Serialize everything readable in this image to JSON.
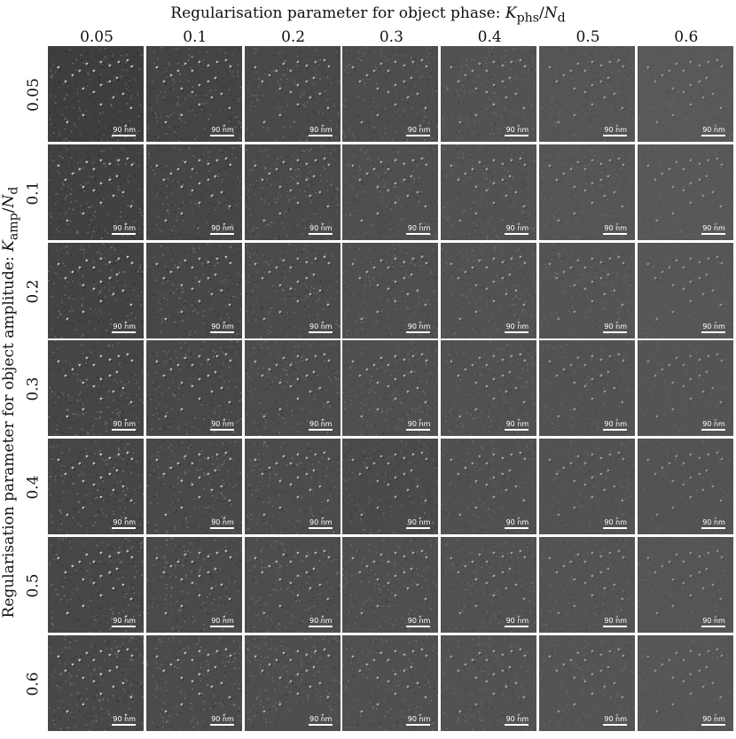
{
  "figure": {
    "top_title_prefix": "Regularisation parameter for object phase: ",
    "top_title_math": "K_phs/N_d",
    "left_title_prefix": "Regularisation parameter for object amplitude: ",
    "left_title_math": "K_amp/N_d",
    "column_values": [
      "0.05",
      "0.1",
      "0.2",
      "0.3",
      "0.4",
      "0.5",
      "0.6"
    ],
    "row_values": [
      "0.05",
      "0.1",
      "0.2",
      "0.3",
      "0.4",
      "0.5",
      "0.6"
    ],
    "scale_bar_label": "90 nm",
    "tile_background_grays": [
      [
        "#3e3e3e",
        "#444444",
        "#494949",
        "#4d4d4d",
        "#525252",
        "#555555",
        "#595959"
      ],
      [
        "#414141",
        "#464646",
        "#4a4a4a",
        "#4f4f4f",
        "#525252",
        "#555555",
        "#585858"
      ],
      [
        "#434343",
        "#474747",
        "#4b4b4b",
        "#4f4f4f",
        "#525252",
        "#545454",
        "#565656"
      ],
      [
        "#454545",
        "#484848",
        "#4c4c4c",
        "#4f4f4f",
        "#515151",
        "#525252",
        "#545454"
      ],
      [
        "#464646",
        "#494949",
        "#4c4c4c",
        "#4a4a4a",
        "#505050",
        "#525252",
        "#535353"
      ],
      [
        "#474747",
        "#4a4a4a",
        "#4d4d4d",
        "#4f4f4f",
        "#515151",
        "#535353",
        "#555555"
      ],
      [
        "#484848",
        "#4b4b4b",
        "#4e4e4e",
        "#505050",
        "#525252",
        "#545454",
        "#565656"
      ]
    ]
  }
}
